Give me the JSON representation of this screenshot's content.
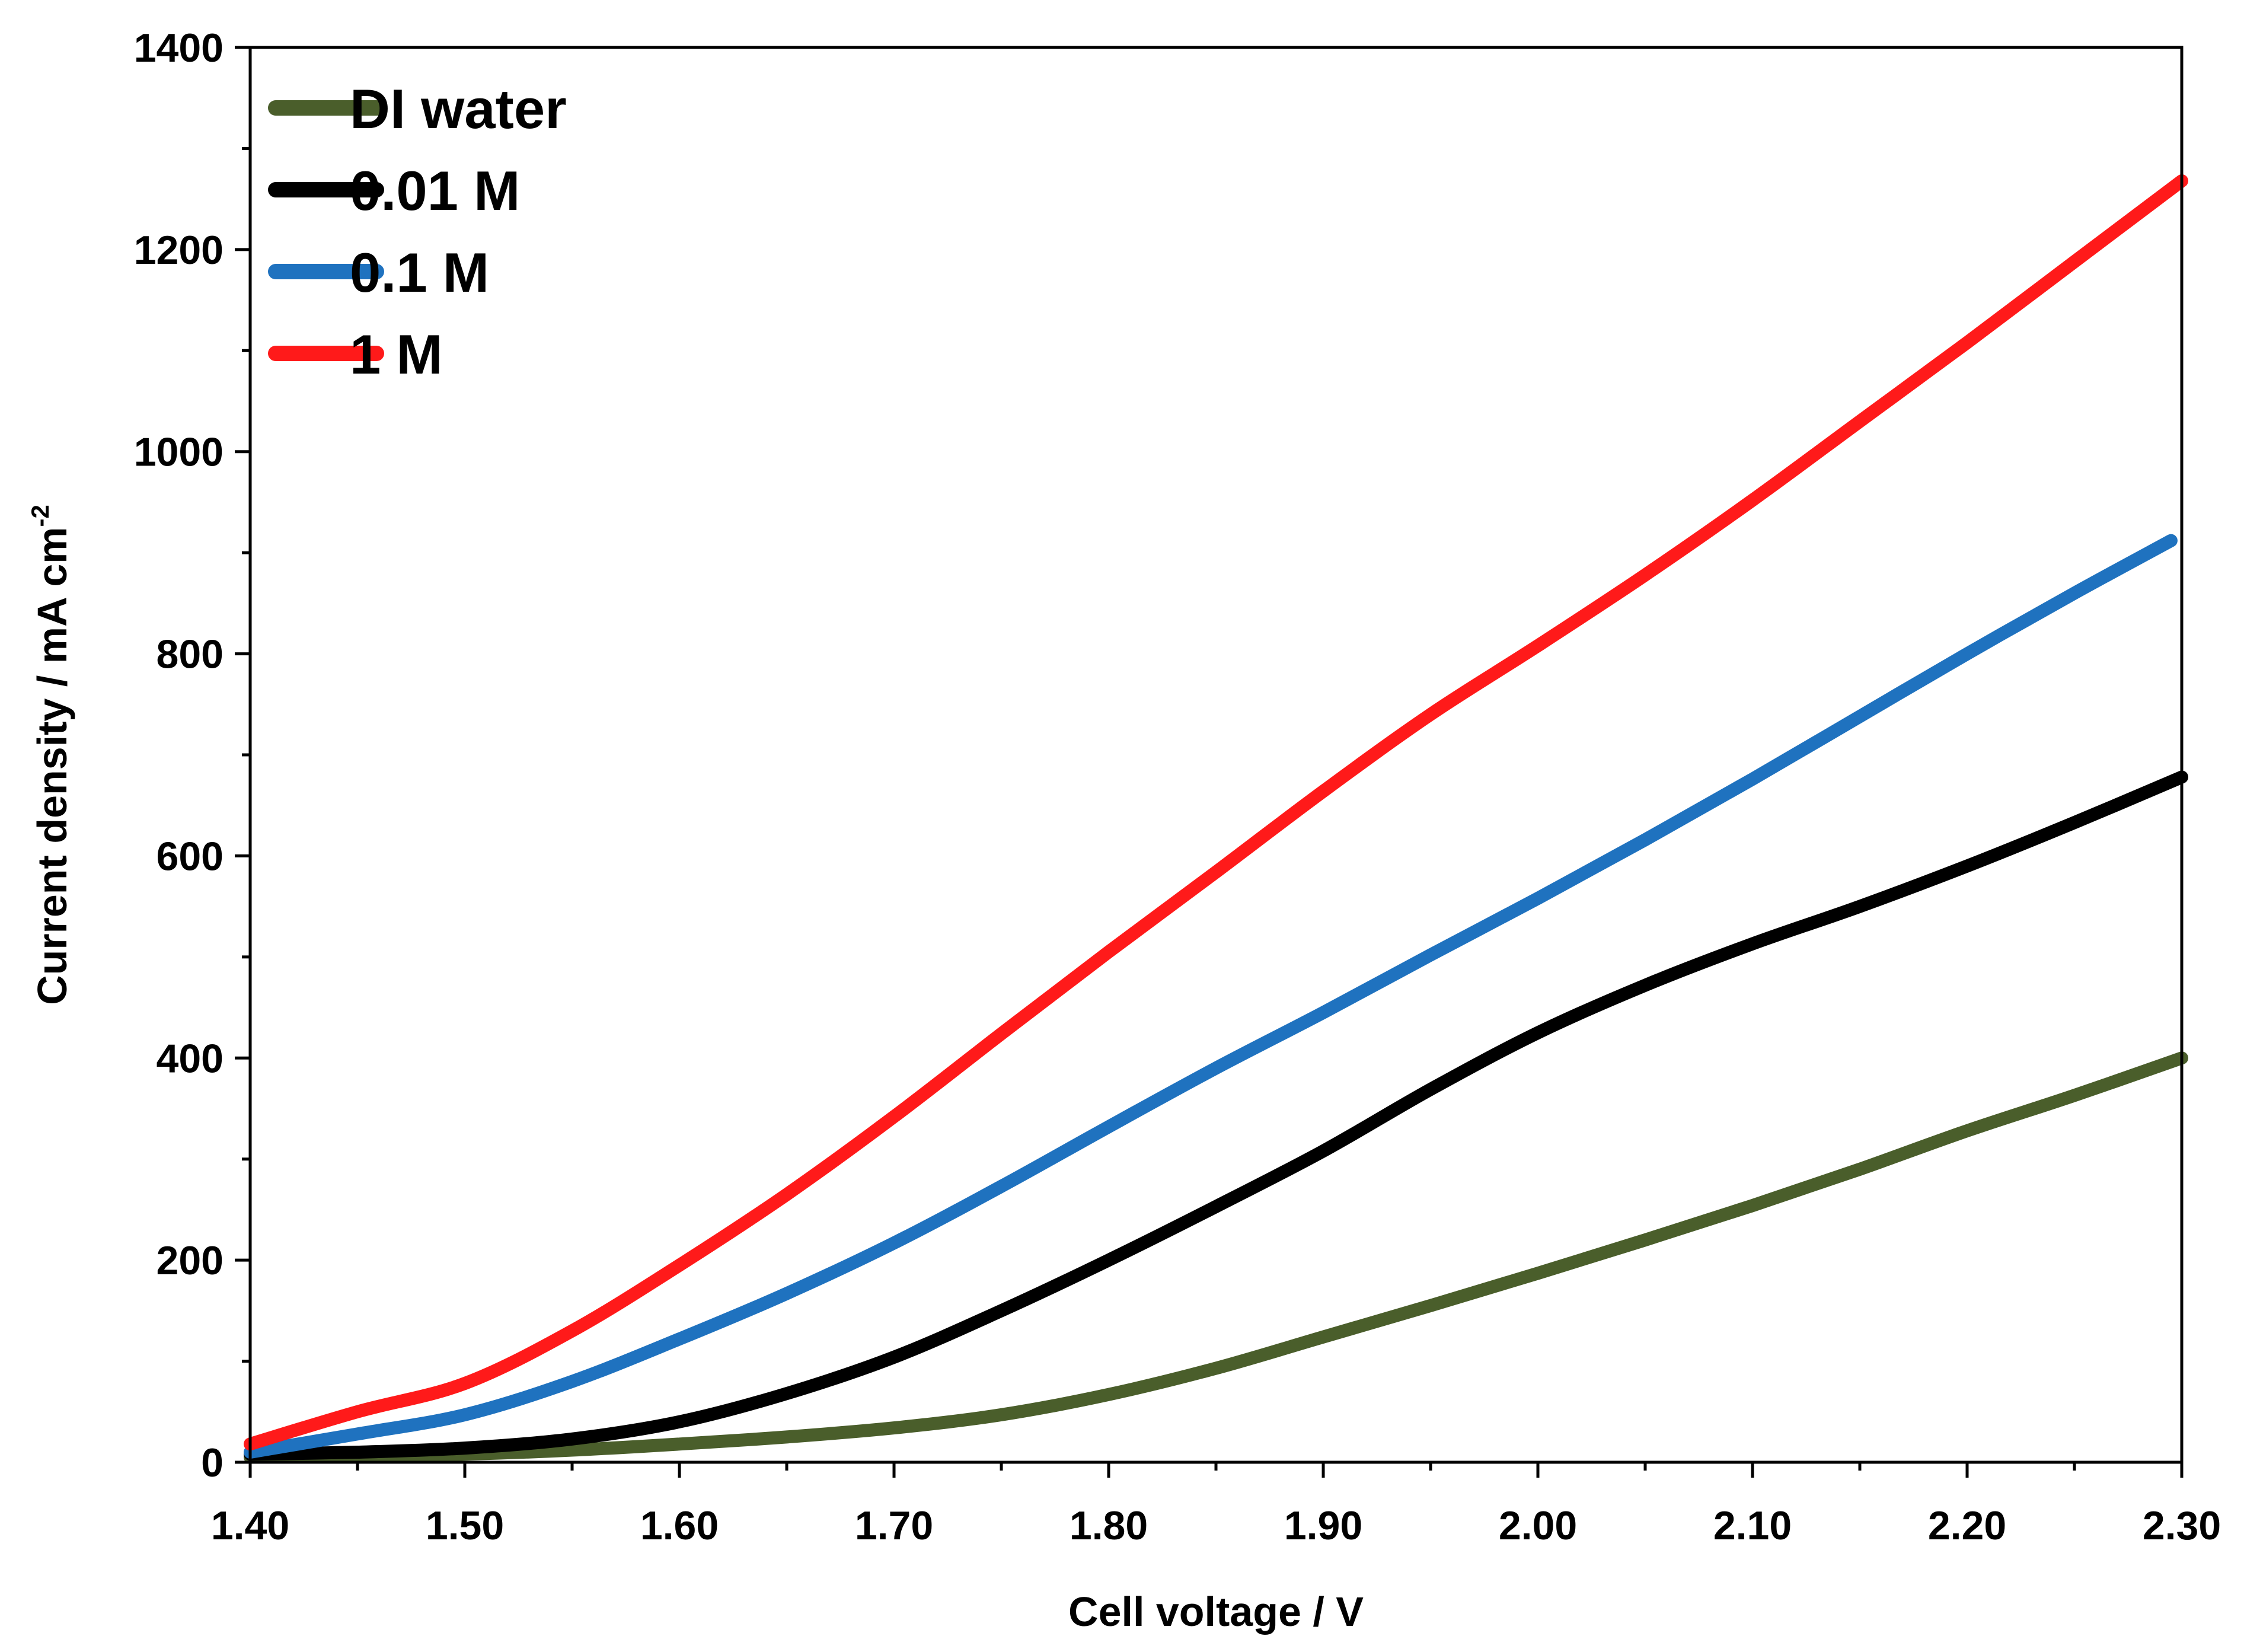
{
  "chart_data": {
    "type": "line",
    "title": "",
    "xlabel": "Cell voltage / V",
    "ylabel": {
      "main": "Current density / mA cm",
      "superscript": "-2"
    },
    "xlim": [
      1.4,
      2.3
    ],
    "ylim": [
      0,
      1400
    ],
    "xticks": [
      "1.40",
      "1.50",
      "1.60",
      "1.70",
      "1.80",
      "1.90",
      "2.00",
      "2.10",
      "2.20",
      "2.30"
    ],
    "yticks": [
      "0",
      "200",
      "400",
      "600",
      "800",
      "1000",
      "1200",
      "1400"
    ],
    "grid": false,
    "legend_position": "top-left",
    "series": [
      {
        "name": "DI water",
        "color": "#4a5e2b",
        "x": [
          1.4,
          1.45,
          1.5,
          1.55,
          1.6,
          1.65,
          1.7,
          1.75,
          1.8,
          1.85,
          1.9,
          1.95,
          2.0,
          2.05,
          2.1,
          2.15,
          2.2,
          2.25,
          2.3
        ],
        "y": [
          5,
          6,
          8,
          12,
          18,
          25,
          34,
          47,
          67,
          93,
          124,
          155,
          187,
          220,
          254,
          290,
          328,
          363,
          400
        ]
      },
      {
        "name": "0.01 M",
        "color": "#000000",
        "x": [
          1.4,
          1.45,
          1.5,
          1.55,
          1.6,
          1.65,
          1.7,
          1.75,
          1.8,
          1.85,
          1.9,
          1.95,
          2.0,
          2.05,
          2.1,
          2.15,
          2.2,
          2.25,
          2.3
        ],
        "y": [
          8,
          10,
          14,
          23,
          40,
          68,
          104,
          150,
          200,
          253,
          308,
          369,
          425,
          472,
          513,
          550,
          590,
          633,
          678
        ]
      },
      {
        "name": "0.1 M",
        "color": "#1f72bf",
        "x": [
          1.4,
          1.45,
          1.5,
          1.55,
          1.6,
          1.65,
          1.7,
          1.75,
          1.8,
          1.85,
          1.9,
          1.95,
          2.0,
          2.05,
          2.1,
          2.15,
          2.2,
          2.25,
          2.295
        ],
        "y": [
          10,
          28,
          47,
          80,
          122,
          167,
          217,
          273,
          332,
          390,
          445,
          502,
          558,
          616,
          676,
          738,
          800,
          860,
          912
        ]
      },
      {
        "name": "1 M",
        "color": "#ff1a1a",
        "x": [
          1.4,
          1.45,
          1.5,
          1.55,
          1.6,
          1.65,
          1.7,
          1.75,
          1.8,
          1.85,
          1.9,
          1.95,
          2.0,
          2.05,
          2.1,
          2.15,
          2.2,
          2.25,
          2.3
        ],
        "y": [
          18,
          50,
          78,
          130,
          195,
          265,
          342,
          424,
          505,
          584,
          664,
          740,
          808,
          878,
          952,
          1030,
          1108,
          1188,
          1268
        ]
      }
    ]
  }
}
